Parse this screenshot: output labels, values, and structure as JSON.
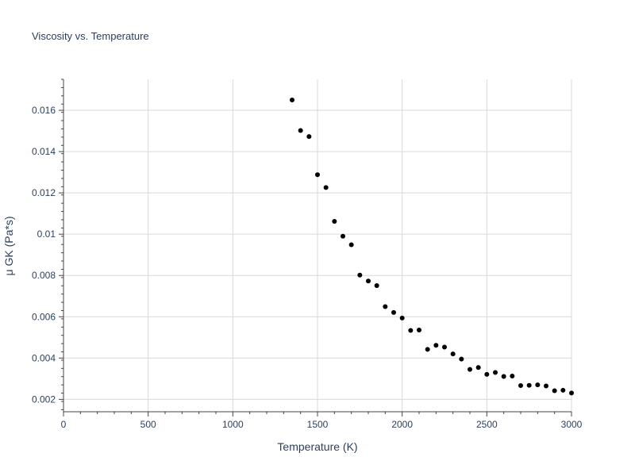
{
  "chart_data": {
    "type": "scatter",
    "title": "Viscosity vs. Temperature",
    "xlabel": "Temperature (K)",
    "ylabel": "μ GK (Pa*s)",
    "xlim": [
      0,
      3000
    ],
    "ylim": [
      0.0014,
      0.0175
    ],
    "x_ticks": [
      0,
      500,
      1000,
      1500,
      2000,
      2500,
      3000
    ],
    "x_tick_labels": [
      "0",
      "500",
      "1000",
      "1500",
      "2000",
      "2500",
      "3000"
    ],
    "y_ticks": [
      0.002,
      0.004,
      0.006,
      0.008,
      0.01,
      0.012,
      0.014,
      0.016
    ],
    "y_tick_labels": [
      "0.002",
      "0.004",
      "0.006",
      "0.008",
      "0.01",
      "0.012",
      "0.014",
      "0.016"
    ],
    "grid": true,
    "point_color": "#000000",
    "points": [
      {
        "x": 1350,
        "y": 0.0165
      },
      {
        "x": 1400,
        "y": 0.01502
      },
      {
        "x": 1450,
        "y": 0.01473
      },
      {
        "x": 1500,
        "y": 0.01288
      },
      {
        "x": 1550,
        "y": 0.01226
      },
      {
        "x": 1600,
        "y": 0.01062
      },
      {
        "x": 1650,
        "y": 0.0099
      },
      {
        "x": 1700,
        "y": 0.00949
      },
      {
        "x": 1750,
        "y": 0.00802
      },
      {
        "x": 1800,
        "y": 0.00773
      },
      {
        "x": 1850,
        "y": 0.00751
      },
      {
        "x": 1900,
        "y": 0.00649
      },
      {
        "x": 1950,
        "y": 0.00621
      },
      {
        "x": 2000,
        "y": 0.00594
      },
      {
        "x": 2050,
        "y": 0.00534
      },
      {
        "x": 2100,
        "y": 0.00536
      },
      {
        "x": 2150,
        "y": 0.00442
      },
      {
        "x": 2200,
        "y": 0.00462
      },
      {
        "x": 2250,
        "y": 0.00453
      },
      {
        "x": 2300,
        "y": 0.0042
      },
      {
        "x": 2350,
        "y": 0.00395
      },
      {
        "x": 2400,
        "y": 0.00345
      },
      {
        "x": 2450,
        "y": 0.00354
      },
      {
        "x": 2500,
        "y": 0.00321
      },
      {
        "x": 2550,
        "y": 0.0033
      },
      {
        "x": 2600,
        "y": 0.00311
      },
      {
        "x": 2650,
        "y": 0.00313
      },
      {
        "x": 2700,
        "y": 0.00267
      },
      {
        "x": 2750,
        "y": 0.00268
      },
      {
        "x": 2800,
        "y": 0.0027
      },
      {
        "x": 2850,
        "y": 0.00265
      },
      {
        "x": 2900,
        "y": 0.00242
      },
      {
        "x": 2950,
        "y": 0.00244
      },
      {
        "x": 3000,
        "y": 0.00231
      }
    ]
  }
}
